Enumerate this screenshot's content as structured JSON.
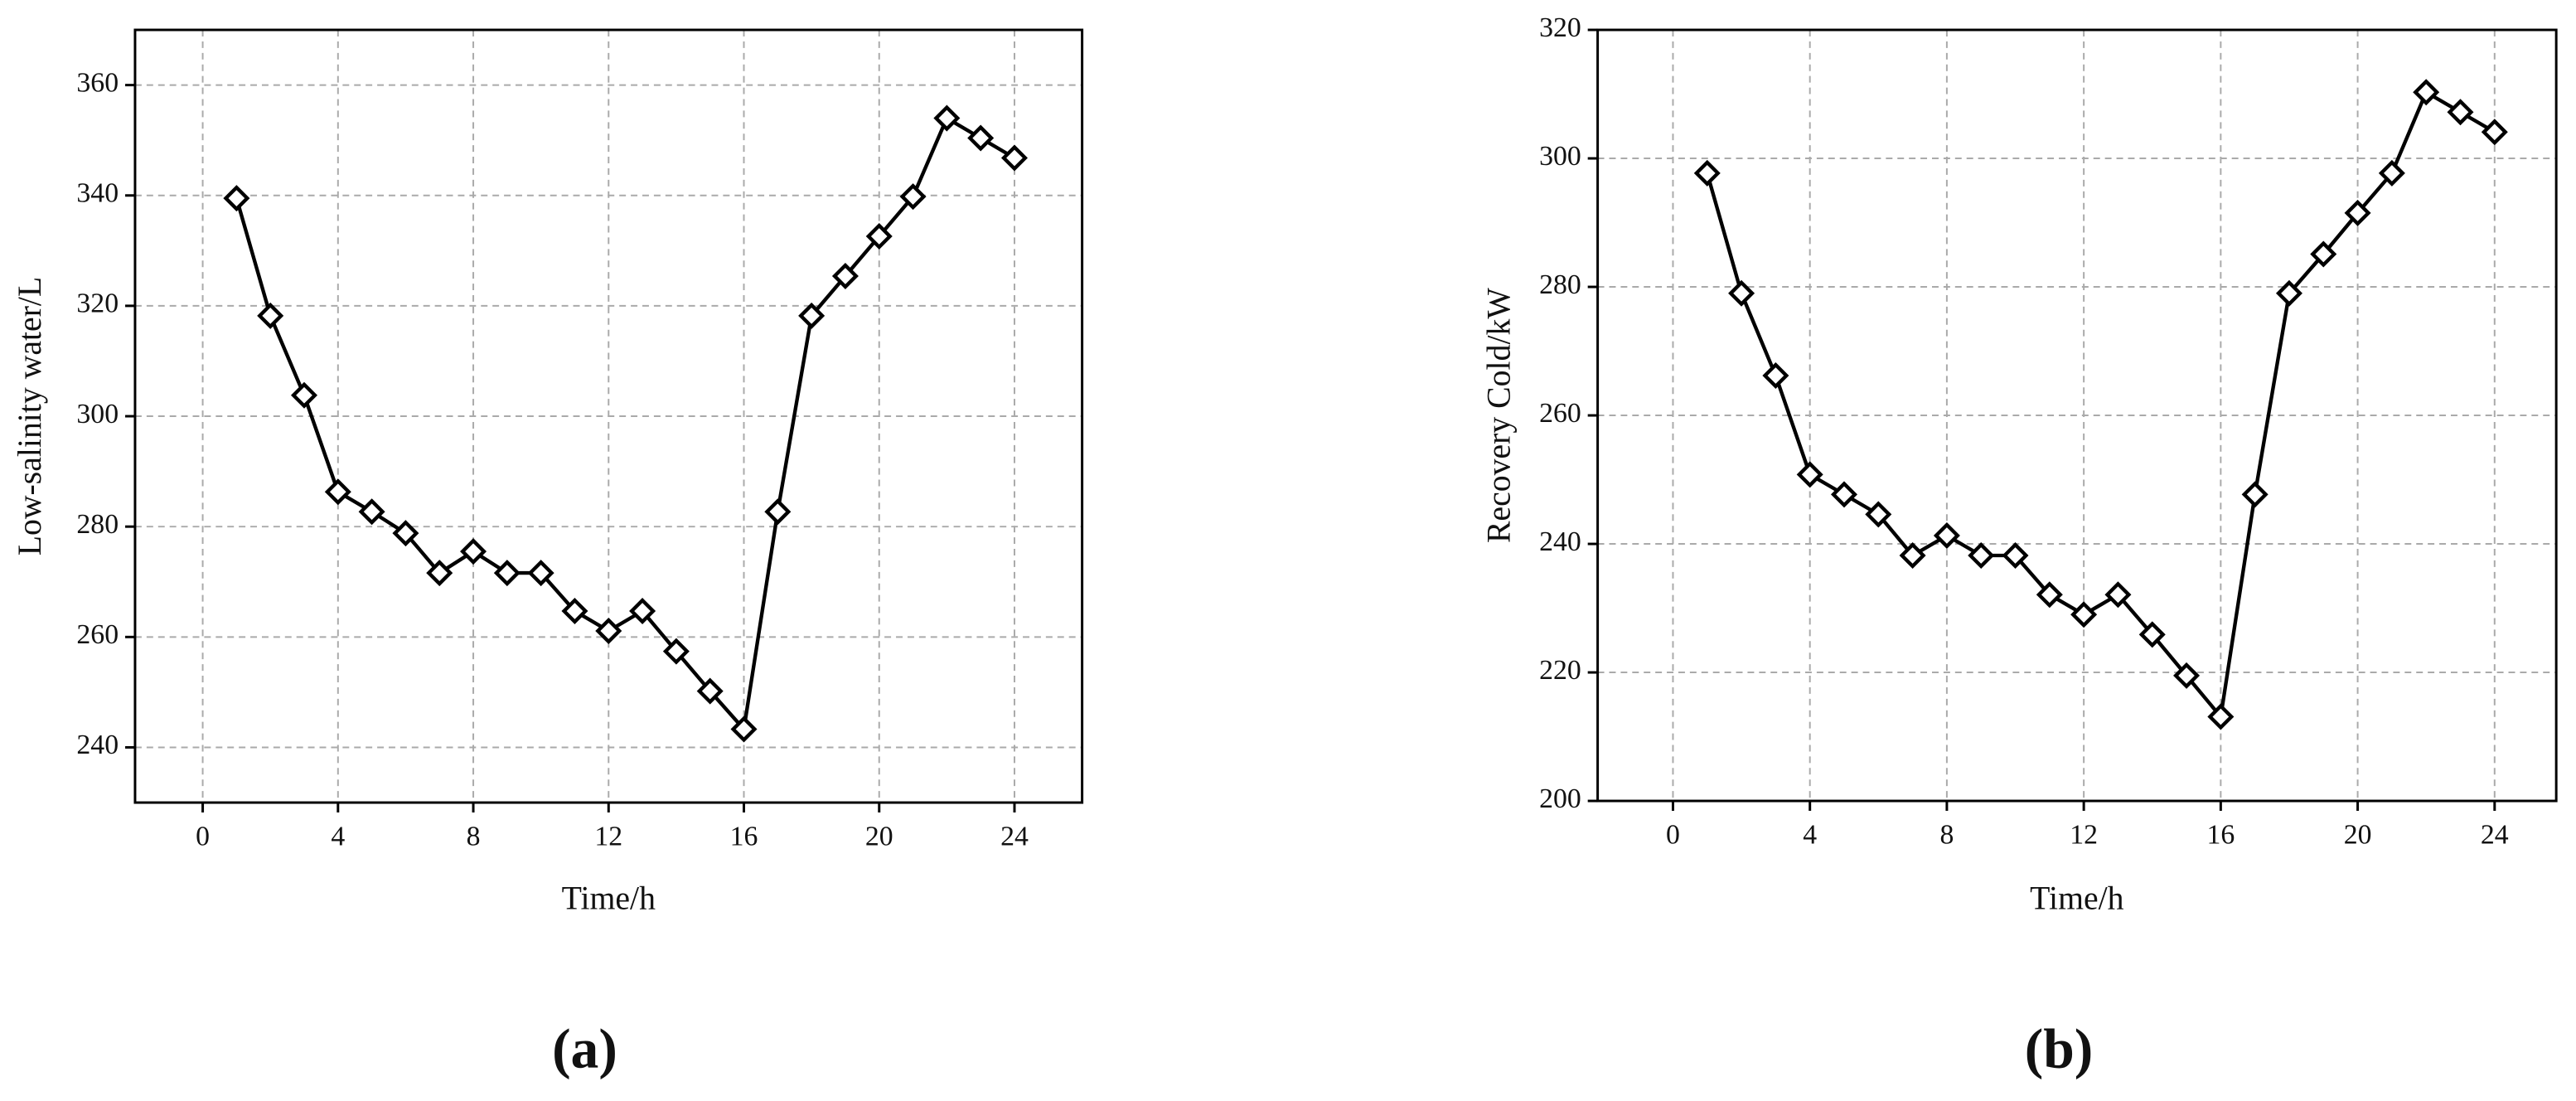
{
  "chart_data": [
    {
      "type": "line",
      "x_label": "Time/h",
      "y_label": "Low-salinity water/L",
      "panel_label": "(a)",
      "x": [
        1,
        2,
        3,
        4,
        5,
        6,
        7,
        8,
        9,
        10,
        11,
        12,
        13,
        14,
        15,
        16,
        17,
        18,
        19,
        20,
        21,
        22,
        23,
        24
      ],
      "values": [
        339.5,
        318.2,
        303.8,
        286.3,
        282.7,
        278.8,
        271.6,
        275.5,
        271.6,
        271.6,
        264.7,
        261.1,
        264.7,
        257.4,
        250.2,
        243.3,
        282.7,
        318.2,
        325.4,
        332.6,
        339.8,
        354,
        350.4,
        346.8
      ],
      "color": "#000000",
      "xlim": [
        -2,
        26
      ],
      "xticks": [
        0,
        4,
        8,
        12,
        16,
        20,
        24
      ],
      "ylim": [
        230,
        370
      ],
      "yticks": [
        240,
        260,
        280,
        300,
        320,
        340,
        360
      ],
      "grid": true
    },
    {
      "type": "line",
      "x_label": "Time/h",
      "y_label": "Recovery Cold/kW",
      "panel_label": "(b)",
      "x": [
        1,
        2,
        3,
        4,
        5,
        6,
        7,
        8,
        9,
        10,
        11,
        12,
        13,
        14,
        15,
        16,
        17,
        18,
        19,
        20,
        21,
        22,
        23,
        24
      ],
      "values": [
        297.7,
        279,
        266.2,
        250.8,
        247.7,
        244.6,
        238.2,
        241.3,
        238.2,
        238.2,
        232.1,
        229,
        232.1,
        225.9,
        219.5,
        213.1,
        247.7,
        279,
        285.1,
        291.5,
        297.7,
        310.3,
        307.2,
        304.1
      ],
      "color": "#000000",
      "xlim": [
        -2.2,
        25.8
      ],
      "xticks": [
        0,
        4,
        8,
        12,
        16,
        20,
        24
      ],
      "ylim": [
        200,
        320
      ],
      "yticks": [
        200,
        220,
        240,
        260,
        280,
        300,
        320
      ],
      "grid": true
    }
  ]
}
